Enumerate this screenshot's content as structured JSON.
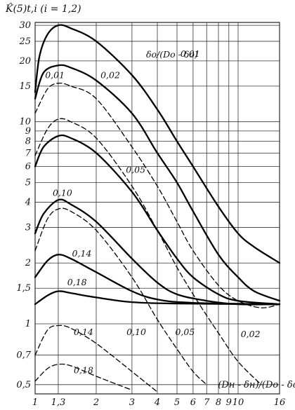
{
  "chart_data": {
    "type": "line",
    "title": "",
    "ylabel": "K̂(5)t,i  (i = 1,2)",
    "xlabel": "(Dн - δн)/(Dо - δо)",
    "x_scale": "log",
    "y_scale": "log",
    "xlim": [
      1,
      16
    ],
    "ylim": [
      0.45,
      31
    ],
    "x_ticks": [
      1,
      1.3,
      2,
      3,
      4,
      5,
      6,
      7,
      8,
      9,
      10,
      16
    ],
    "x_tick_labels": [
      "1",
      "1,3",
      "2",
      "3",
      "4",
      "5",
      "6",
      "7",
      "8",
      "9",
      "10",
      "16"
    ],
    "y_ticks": [
      0.5,
      0.7,
      1,
      1.5,
      2,
      3,
      4,
      5,
      6,
      7,
      8,
      9,
      10,
      15,
      20,
      25,
      30
    ],
    "y_tick_labels": [
      "0,5",
      "0,7",
      "1",
      "1,5",
      "2",
      "3",
      "4",
      "5",
      "6",
      "7",
      "8",
      "9",
      "10",
      "15",
      "20",
      "25",
      "30"
    ],
    "grid": true,
    "parameter_label": "δо/(Dо - δо)",
    "series": [
      {
        "name": "0,01",
        "style": "solid",
        "points": [
          [
            1,
            14
          ],
          [
            1.05,
            21
          ],
          [
            1.15,
            27
          ],
          [
            1.3,
            30
          ],
          [
            1.5,
            29
          ],
          [
            2,
            25
          ],
          [
            3,
            17
          ],
          [
            4,
            11.5
          ],
          [
            5,
            8
          ],
          [
            6,
            6
          ],
          [
            8,
            3.8
          ],
          [
            10,
            2.8
          ],
          [
            12,
            2.4
          ],
          [
            16,
            2
          ]
        ]
      },
      {
        "name": "0,02",
        "style": "solid",
        "points": [
          [
            1,
            13
          ],
          [
            1.1,
            17.5
          ],
          [
            1.3,
            19
          ],
          [
            1.5,
            18.5
          ],
          [
            2,
            16
          ],
          [
            3,
            11
          ],
          [
            4,
            7
          ],
          [
            5,
            5
          ],
          [
            6,
            3.6
          ],
          [
            8,
            2.2
          ],
          [
            10,
            1.7
          ],
          [
            12,
            1.45
          ],
          [
            16,
            1.3
          ]
        ]
      },
      {
        "name": "0,05",
        "style": "solid",
        "points": [
          [
            1,
            6
          ],
          [
            1.1,
            7.5
          ],
          [
            1.3,
            8.5
          ],
          [
            1.5,
            8.3
          ],
          [
            2,
            7
          ],
          [
            3,
            4.5
          ],
          [
            4,
            2.9
          ],
          [
            5,
            2.1
          ],
          [
            6,
            1.7
          ],
          [
            8,
            1.4
          ],
          [
            10,
            1.3
          ],
          [
            16,
            1.25
          ]
        ]
      },
      {
        "name": "0,10",
        "style": "solid",
        "points": [
          [
            1,
            2.8
          ],
          [
            1.1,
            3.5
          ],
          [
            1.3,
            4.1
          ],
          [
            1.5,
            3.9
          ],
          [
            2,
            3.2
          ],
          [
            3,
            2.1
          ],
          [
            4,
            1.6
          ],
          [
            5,
            1.4
          ],
          [
            7,
            1.3
          ],
          [
            10,
            1.25
          ],
          [
            16,
            1.25
          ]
        ]
      },
      {
        "name": "0,14",
        "style": "solid",
        "points": [
          [
            1,
            1.7
          ],
          [
            1.15,
            2.05
          ],
          [
            1.3,
            2.2
          ],
          [
            1.5,
            2.1
          ],
          [
            2,
            1.8
          ],
          [
            3,
            1.45
          ],
          [
            4,
            1.32
          ],
          [
            6,
            1.27
          ],
          [
            16,
            1.25
          ]
        ]
      },
      {
        "name": "0,18",
        "style": "solid",
        "points": [
          [
            1,
            1.25
          ],
          [
            1.15,
            1.38
          ],
          [
            1.3,
            1.45
          ],
          [
            1.5,
            1.42
          ],
          [
            2,
            1.35
          ],
          [
            3,
            1.28
          ],
          [
            5,
            1.26
          ],
          [
            16,
            1.25
          ]
        ]
      },
      {
        "name": "0,01",
        "style": "dashed",
        "points": [
          [
            1,
            11
          ],
          [
            1.15,
            14.5
          ],
          [
            1.3,
            15.5
          ],
          [
            1.5,
            15
          ],
          [
            2,
            13
          ],
          [
            3,
            7.5
          ],
          [
            4,
            4.8
          ],
          [
            5,
            3.2
          ],
          [
            6,
            2.3
          ],
          [
            8,
            1.55
          ],
          [
            10,
            1.3
          ],
          [
            13,
            1.2
          ],
          [
            16,
            1.25
          ]
        ]
      },
      {
        "name": "0,05",
        "style": "dashed",
        "points": [
          [
            1,
            6.8
          ],
          [
            1.15,
            9.2
          ],
          [
            1.3,
            10.3
          ],
          [
            1.5,
            10
          ],
          [
            2,
            8.3
          ],
          [
            3,
            4.8
          ],
          [
            4,
            2.9
          ],
          [
            5,
            1.9
          ],
          [
            6,
            1.4
          ],
          [
            7,
            1.1
          ],
          [
            8,
            0.9
          ],
          [
            10,
            0.65
          ],
          [
            13,
            0.5
          ]
        ]
      },
      {
        "name": "0,10",
        "style": "dashed",
        "points": [
          [
            1,
            2.3
          ],
          [
            1.15,
            3.3
          ],
          [
            1.3,
            3.7
          ],
          [
            1.5,
            3.6
          ],
          [
            2,
            2.9
          ],
          [
            3,
            1.7
          ],
          [
            4,
            1.05
          ],
          [
            5,
            0.75
          ],
          [
            6,
            0.58
          ],
          [
            7,
            0.5
          ]
        ]
      },
      {
        "name": "0,14",
        "style": "dashed",
        "points": [
          [
            1,
            0.7
          ],
          [
            1.15,
            0.93
          ],
          [
            1.3,
            0.98
          ],
          [
            1.5,
            0.95
          ],
          [
            2,
            0.8
          ],
          [
            3,
            0.58
          ],
          [
            4,
            0.46
          ]
        ]
      },
      {
        "name": "0,18",
        "style": "dashed",
        "points": [
          [
            1,
            0.52
          ],
          [
            1.15,
            0.6
          ],
          [
            1.3,
            0.63
          ],
          [
            1.5,
            0.62
          ],
          [
            2,
            0.55
          ],
          [
            3,
            0.47
          ]
        ]
      }
    ],
    "annotations": [
      {
        "text": "0,01",
        "x": 5.2,
        "y": 21
      },
      {
        "text": "0,01",
        "x": 1.12,
        "y": 16.4
      },
      {
        "text": "0,02",
        "x": 2.1,
        "y": 16.4
      },
      {
        "text": "0,05",
        "x": 2.8,
        "y": 5.6
      },
      {
        "text": "0,10",
        "x": 1.22,
        "y": 4.3
      },
      {
        "text": "0,14",
        "x": 1.52,
        "y": 2.15
      },
      {
        "text": "0,18",
        "x": 1.44,
        "y": 1.55
      },
      {
        "text": "0,14",
        "x": 1.55,
        "y": 0.88
      },
      {
        "text": "0,10",
        "x": 2.82,
        "y": 0.88
      },
      {
        "text": "0,05",
        "x": 4.9,
        "y": 0.88
      },
      {
        "text": "0,02",
        "x": 10.3,
        "y": 0.86
      },
      {
        "text": "0,18",
        "x": 1.55,
        "y": 0.57
      }
    ]
  }
}
